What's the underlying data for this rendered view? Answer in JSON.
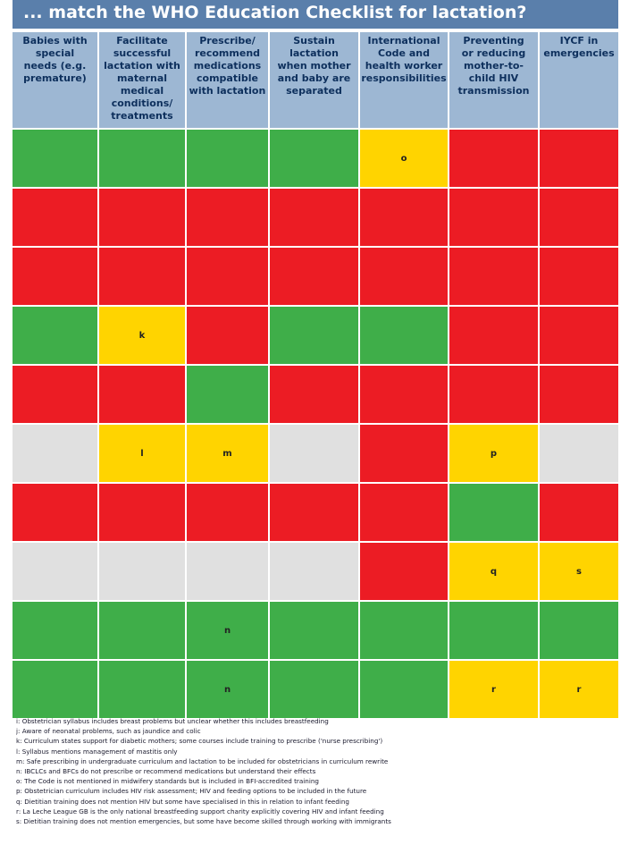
{
  "title": "... match the WHO Education Checklist for lactation?",
  "headers": [
    "Babies with special needs (e.g. premature)",
    "Facilitate successful lactation with maternal medical conditions/ treatments",
    "Prescribe/ recommend medications compatible with lactation",
    "Sustain lactation when mother and baby are separated",
    "International Code and health worker responsibilities",
    "Preventing or reducing mother-to-child HIV transmission",
    "IYCF in emergencies"
  ],
  "header_lines": [
    [
      "Babies with",
      "special",
      "needs (e.g.",
      "premature)"
    ],
    [
      "Facilitate",
      "successful",
      "lactation with",
      "maternal",
      "medical",
      "conditions/",
      "treatments"
    ],
    [
      "Prescribe/",
      "recommend",
      "medications",
      "compatible",
      "with lactation"
    ],
    [
      "Sustain",
      "lactation",
      "when mother",
      "and baby are",
      "separated"
    ],
    [
      "International",
      "Code and",
      "health worker",
      "responsibilities"
    ],
    [
      "Preventing",
      "or reducing",
      "mother-to-",
      "child HIV",
      "transmission"
    ],
    [
      "IYCF in",
      "emergencies"
    ]
  ],
  "colors": {
    "green": "#3fae49",
    "red": "#ec1c24",
    "yellow": "#ffd400",
    "grey": "#e0e0e0",
    "header": "#9db7d3",
    "title": "#5a7fab"
  },
  "rows": [
    [
      {
        "c": "g",
        "t": ""
      },
      {
        "c": "g",
        "t": ""
      },
      {
        "c": "g",
        "t": ""
      },
      {
        "c": "g",
        "t": ""
      },
      {
        "c": "y",
        "t": "o"
      },
      {
        "c": "r",
        "t": ""
      },
      {
        "c": "r",
        "t": ""
      }
    ],
    [
      {
        "c": "r",
        "t": ""
      },
      {
        "c": "r",
        "t": ""
      },
      {
        "c": "r",
        "t": ""
      },
      {
        "c": "r",
        "t": ""
      },
      {
        "c": "r",
        "t": ""
      },
      {
        "c": "r",
        "t": ""
      },
      {
        "c": "r",
        "t": ""
      }
    ],
    [
      {
        "c": "r",
        "t": ""
      },
      {
        "c": "r",
        "t": ""
      },
      {
        "c": "r",
        "t": ""
      },
      {
        "c": "r",
        "t": ""
      },
      {
        "c": "r",
        "t": ""
      },
      {
        "c": "r",
        "t": ""
      },
      {
        "c": "r",
        "t": ""
      }
    ],
    [
      {
        "c": "g",
        "t": ""
      },
      {
        "c": "y",
        "t": "k"
      },
      {
        "c": "r",
        "t": ""
      },
      {
        "c": "g",
        "t": ""
      },
      {
        "c": "g",
        "t": ""
      },
      {
        "c": "r",
        "t": ""
      },
      {
        "c": "r",
        "t": ""
      }
    ],
    [
      {
        "c": "r",
        "t": ""
      },
      {
        "c": "r",
        "t": ""
      },
      {
        "c": "g",
        "t": ""
      },
      {
        "c": "r",
        "t": ""
      },
      {
        "c": "r",
        "t": ""
      },
      {
        "c": "r",
        "t": ""
      },
      {
        "c": "r",
        "t": ""
      }
    ],
    [
      {
        "c": "e",
        "t": ""
      },
      {
        "c": "y",
        "t": "l"
      },
      {
        "c": "y",
        "t": "m"
      },
      {
        "c": "e",
        "t": ""
      },
      {
        "c": "r",
        "t": ""
      },
      {
        "c": "y",
        "t": "p"
      },
      {
        "c": "e",
        "t": ""
      }
    ],
    [
      {
        "c": "r",
        "t": ""
      },
      {
        "c": "r",
        "t": ""
      },
      {
        "c": "r",
        "t": ""
      },
      {
        "c": "r",
        "t": ""
      },
      {
        "c": "r",
        "t": ""
      },
      {
        "c": "g",
        "t": ""
      },
      {
        "c": "r",
        "t": ""
      }
    ],
    [
      {
        "c": "e",
        "t": ""
      },
      {
        "c": "e",
        "t": ""
      },
      {
        "c": "e",
        "t": ""
      },
      {
        "c": "e",
        "t": ""
      },
      {
        "c": "r",
        "t": ""
      },
      {
        "c": "y",
        "t": "q"
      },
      {
        "c": "y",
        "t": "s"
      }
    ],
    [
      {
        "c": "g",
        "t": ""
      },
      {
        "c": "g",
        "t": ""
      },
      {
        "c": "g",
        "t": "n"
      },
      {
        "c": "g",
        "t": ""
      },
      {
        "c": "g",
        "t": ""
      },
      {
        "c": "g",
        "t": ""
      },
      {
        "c": "g",
        "t": ""
      }
    ],
    [
      {
        "c": "g",
        "t": ""
      },
      {
        "c": "g",
        "t": ""
      },
      {
        "c": "g",
        "t": "n"
      },
      {
        "c": "g",
        "t": ""
      },
      {
        "c": "g",
        "t": ""
      },
      {
        "c": "y",
        "t": "r"
      },
      {
        "c": "y",
        "t": "r"
      }
    ]
  ],
  "notes": [
    "i:  Obstetrician syllabus includes breast problems but unclear whether this includes breastfeeding",
    "j:  Aware of neonatal problems, such as jaundice and colic",
    "k:  Curriculum states support for diabetic mothers; some courses include training to prescribe ('nurse prescribing')",
    "l:  Syllabus mentions management of mastitis only",
    "m:  Safe prescribing in undergraduate curriculum and lactation to be included for obstetricians in curriculum rewrite",
    "n:  IBCLCs and BFCs do not prescribe or recommend medications but understand their effects",
    "o:  The Code is not mentioned in midwifery standards but is included in BFI-accredited training",
    "p:  Obstetrician curriculum includes HIV risk assessment; HIV and feeding options to be included in the future",
    "q:  Dietitian training does not mention HIV but some have specialised in this in relation to infant feeding",
    "r:  La Leche League GB is the only national breastfeeding support charity explicitly covering HIV and infant feeding",
    "s:  Dietitian training does not mention emergencies, but some have become skilled through working with immigrants"
  ]
}
